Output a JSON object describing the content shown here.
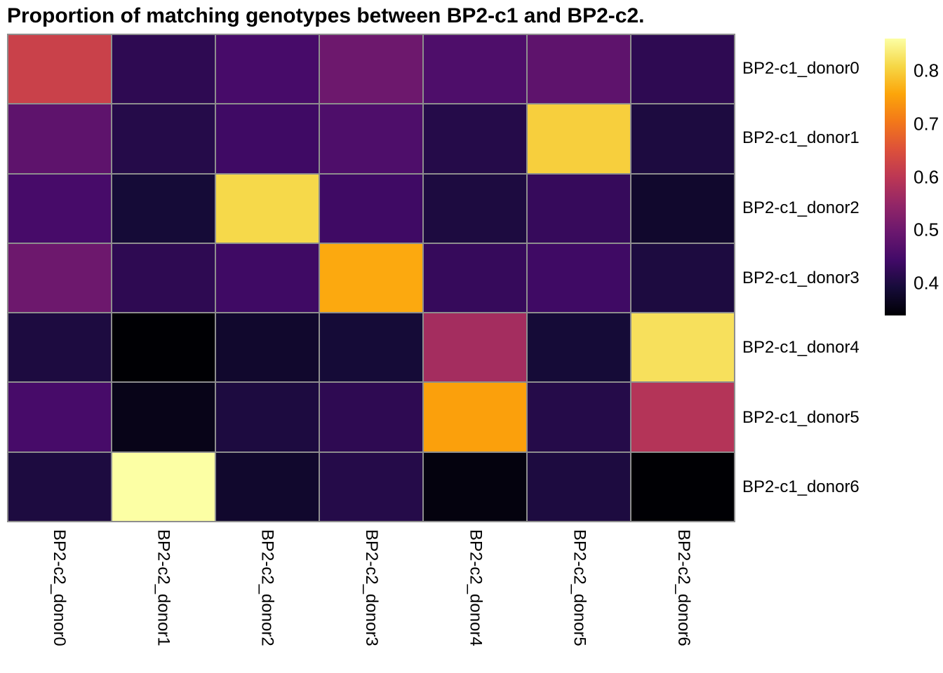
{
  "title": "Proportion of matching genotypes between BP2-c1 and BP2-c2.",
  "chart_data": {
    "type": "heatmap",
    "title": "Proportion of matching genotypes between BP2-c1 and BP2-c2.",
    "rows": [
      "BP2-c1_donor0",
      "BP2-c1_donor1",
      "BP2-c1_donor2",
      "BP2-c1_donor3",
      "BP2-c1_donor4",
      "BP2-c1_donor5",
      "BP2-c1_donor6"
    ],
    "columns": [
      "BP2-c2_donor0",
      "BP2-c2_donor1",
      "BP2-c2_donor2",
      "BP2-c2_donor3",
      "BP2-c2_donor4",
      "BP2-c2_donor5",
      "BP2-c2_donor6"
    ],
    "values": [
      [
        0.62,
        0.42,
        0.45,
        0.5,
        0.46,
        0.48,
        0.42
      ],
      [
        0.48,
        0.41,
        0.44,
        0.46,
        0.41,
        0.8,
        0.4
      ],
      [
        0.45,
        0.39,
        0.81,
        0.44,
        0.4,
        0.43,
        0.38
      ],
      [
        0.5,
        0.42,
        0.44,
        0.76,
        0.43,
        0.44,
        0.4
      ],
      [
        0.4,
        0.34,
        0.38,
        0.39,
        0.57,
        0.39,
        0.82
      ],
      [
        0.45,
        0.36,
        0.4,
        0.42,
        0.75,
        0.41,
        0.59
      ],
      [
        0.4,
        0.86,
        0.38,
        0.41,
        0.35,
        0.4,
        0.34
      ]
    ],
    "colormap": "inferno",
    "colormap_stops": [
      "#000004",
      "#160b39",
      "#420a68",
      "#6a176e",
      "#932667",
      "#bc3754",
      "#dd513a",
      "#f37819",
      "#fca50a",
      "#f6d746",
      "#fcffa4"
    ],
    "vmin": 0.34,
    "vmax": 0.86,
    "colorbar_ticks": [
      0.8,
      0.7,
      0.6,
      0.5,
      0.4
    ],
    "colorbar_position": "right",
    "gridline_color": "#8e8e8e",
    "xlabel": "",
    "ylabel": "",
    "grid": true
  }
}
